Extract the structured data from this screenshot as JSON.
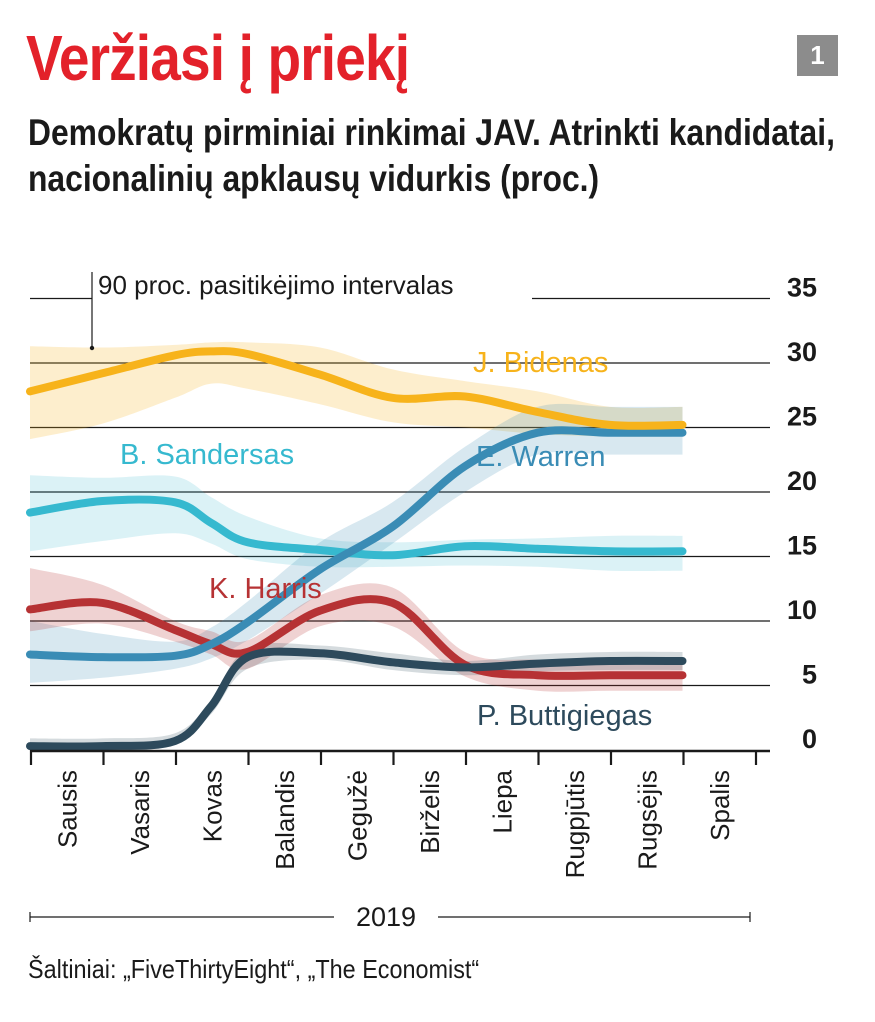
{
  "header": {
    "title": "Veržiasi į priekį",
    "page_number": "1",
    "subtitle": "Demokratų pirminiai rinkimai JAV. Atrinkti kandidatai, nacionalinių apklausų vidurkis (proc.)"
  },
  "chart_data": {
    "type": "line",
    "title": "Veržiasi į priekį",
    "subtitle": "Demokratų pirminiai rinkimai JAV. Atrinkti kandidatai, nacionalinių apklausų vidurkis (proc.)",
    "x_categories": [
      "Sausis",
      "Vasaris",
      "Kovas",
      "Balandis",
      "Gegužė",
      "Birželis",
      "Liepa",
      "Rugpjūtis",
      "Rugsėjis",
      "Spalis"
    ],
    "x_year_label": "2019",
    "ylim": [
      0,
      35
    ],
    "y_ticks": [
      0,
      5,
      10,
      15,
      20,
      25,
      30,
      35
    ],
    "y_axis_side": "right",
    "grid": true,
    "band_annotation": "90 proc. pasitikėjimo intervalas",
    "x": [
      0,
      1,
      2,
      2.5,
      3,
      4,
      5,
      6,
      7,
      8,
      9
    ],
    "series": [
      {
        "name": "J. Bidenas",
        "color": "#f7b31b",
        "values": [
          27.8,
          29.2,
          30.6,
          30.9,
          30.7,
          29.1,
          27.3,
          27.4,
          26.2,
          25.2,
          25.2
        ],
        "band_low": [
          24.1,
          25.3,
          27.3,
          28.4,
          28.0,
          26.8,
          25.4,
          25.0,
          24.5,
          24.3,
          24.3
        ],
        "band_high": [
          31.3,
          31.2,
          31.4,
          31.6,
          31.6,
          31.2,
          29.5,
          28.6,
          27.8,
          26.6,
          26.6
        ]
      },
      {
        "name": "B. Sandersas",
        "color": "#36b9cf",
        "values": [
          18.4,
          19.3,
          19.2,
          17.6,
          16.1,
          15.5,
          15.1,
          15.8,
          15.6,
          15.4,
          15.4
        ],
        "band_low": [
          15.4,
          16.2,
          16.8,
          16.0,
          14.8,
          14.2,
          14.2,
          14.3,
          14.2,
          13.9,
          13.9
        ],
        "band_high": [
          21.3,
          21.1,
          21.2,
          19.6,
          18.1,
          16.4,
          16.1,
          16.3,
          16.4,
          16.6,
          16.6
        ]
      },
      {
        "name": "E. Warren",
        "color": "#3a8cb5",
        "values": [
          7.4,
          7.2,
          7.3,
          8.2,
          9.9,
          14.0,
          17.3,
          22.0,
          24.6,
          24.6,
          24.6
        ],
        "band_low": [
          5.2,
          5.6,
          6.3,
          7.1,
          8.5,
          12.1,
          16.0,
          20.0,
          22.9,
          22.9,
          22.9
        ],
        "band_high": [
          10.0,
          9.0,
          8.4,
          9.5,
          11.5,
          16.1,
          19.2,
          23.5,
          26.6,
          26.6,
          26.6
        ]
      },
      {
        "name": "K. Harris",
        "color": "#b63234",
        "values": [
          10.9,
          11.4,
          9.3,
          8.2,
          7.6,
          10.8,
          11.4,
          6.6,
          5.8,
          5.8,
          5.8
        ],
        "band_low": [
          9.2,
          9.8,
          8.4,
          7.4,
          6.3,
          9.6,
          9.6,
          5.7,
          4.6,
          4.6,
          4.6
        ],
        "band_high": [
          14.1,
          12.8,
          10.0,
          9.2,
          8.5,
          12.0,
          12.6,
          7.6,
          7.0,
          7.0,
          7.0
        ]
      },
      {
        "name": "P. Buttigiegas",
        "color": "#2d4a5c",
        "values": [
          0.3,
          0.3,
          0.7,
          3.4,
          7.2,
          7.5,
          6.8,
          6.4,
          6.7,
          6.9,
          6.9
        ],
        "band_low": [
          0.1,
          0.1,
          0.5,
          2.8,
          6.3,
          7.0,
          6.2,
          5.8,
          6.1,
          6.2,
          6.2
        ],
        "band_high": [
          0.9,
          0.9,
          1.3,
          3.9,
          7.9,
          8.1,
          7.5,
          6.9,
          7.4,
          7.6,
          7.6
        ]
      }
    ]
  },
  "source": "Šaltiniai: „FiveThirtyEight“, „The Economist“"
}
